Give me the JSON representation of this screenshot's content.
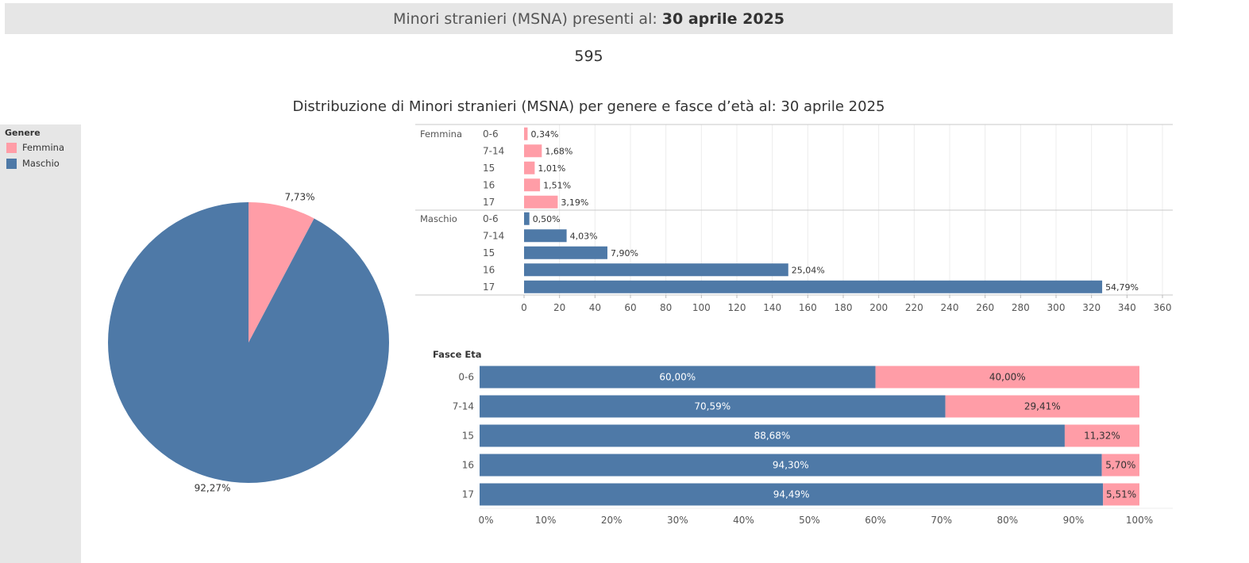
{
  "header": {
    "prefix": "Minori stranieri (MSNA) presenti al:",
    "date": "30 aprile 2025"
  },
  "total": "595",
  "subtitle": "Distribuzione di Minori stranieri (MSNA) per genere e fasce d’età al: 30 aprile 2025",
  "colors": {
    "femmina": "#ff9da7",
    "maschio": "#4e79a7"
  },
  "legend": {
    "title": "Genere",
    "items": [
      "Femmina",
      "Maschio"
    ]
  },
  "chart_data": [
    {
      "type": "pie",
      "labels": [
        "Femmina",
        "Maschio"
      ],
      "values": [
        7.73,
        92.27
      ],
      "value_labels": [
        "7,73%",
        "92,27%"
      ]
    },
    {
      "type": "bar",
      "orientation": "horizontal",
      "groups": [
        {
          "name": "Femmina",
          "categories": [
            "0-6",
            "7-14",
            "15",
            "16",
            "17"
          ],
          "values": [
            2,
            10,
            6,
            9,
            19
          ],
          "value_labels": [
            "0,34%",
            "1,68%",
            "1,01%",
            "1,51%",
            "3,19%"
          ]
        },
        {
          "name": "Maschio",
          "categories": [
            "0-6",
            "7-14",
            "15",
            "16",
            "17"
          ],
          "values": [
            3,
            24,
            47,
            149,
            326
          ],
          "value_labels": [
            "0,50%",
            "4,03%",
            "7,90%",
            "25,04%",
            "54,79%"
          ]
        }
      ],
      "xlim": [
        0,
        360
      ],
      "xticks": [
        0,
        20,
        40,
        60,
        80,
        100,
        120,
        140,
        160,
        180,
        200,
        220,
        240,
        260,
        280,
        300,
        320,
        340,
        360
      ],
      "grid": true
    },
    {
      "type": "bar",
      "orientation": "horizontal",
      "stacked": "percent",
      "ylabel": "Fasce Eta",
      "categories": [
        "0-6",
        "7-14",
        "15",
        "16",
        "17"
      ],
      "series": [
        {
          "name": "Maschio",
          "values": [
            60.0,
            70.59,
            88.68,
            94.3,
            94.49
          ],
          "value_labels": [
            "60,00%",
            "70,59%",
            "88,68%",
            "94,30%",
            "94,49%"
          ]
        },
        {
          "name": "Femmina",
          "values": [
            40.0,
            29.41,
            11.32,
            5.7,
            5.51
          ],
          "value_labels": [
            "40,00%",
            "29,41%",
            "11,32%",
            "5,70%",
            "5,51%"
          ]
        }
      ],
      "xticks": [
        "0%",
        "10%",
        "20%",
        "30%",
        "40%",
        "50%",
        "60%",
        "70%",
        "80%",
        "90%",
        "100%"
      ],
      "xlim": [
        0,
        100
      ]
    }
  ]
}
